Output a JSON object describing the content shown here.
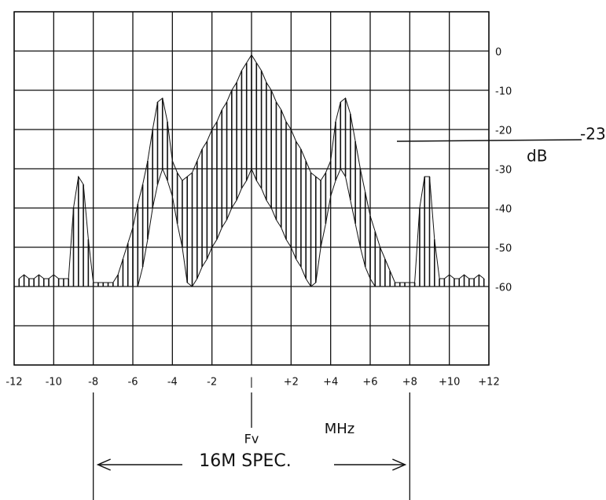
{
  "chart_data": {
    "type": "comb",
    "x_label": "MHz",
    "y_label": "dB",
    "center_label": "Fv",
    "span": {
      "label": "16M SPEC.",
      "from": -8,
      "to": 8
    },
    "reference_line": {
      "value": -23
    },
    "xlim": [
      -12,
      12
    ],
    "ylim": [
      -80,
      10
    ],
    "xticks": [
      -12,
      -10,
      -8,
      -6,
      -4,
      -2,
      {
        "value": 0,
        "label": "|"
      },
      {
        "value": 2,
        "label": "+2"
      },
      {
        "value": 4,
        "label": "+4"
      },
      {
        "value": 6,
        "label": "+6"
      },
      {
        "value": 8,
        "label": "+8"
      },
      {
        "value": 10,
        "label": "+10"
      },
      {
        "value": 12,
        "label": "+12"
      }
    ],
    "yticks": [
      0,
      -10,
      -20,
      -30,
      -40,
      -50,
      -60
    ],
    "grid": true,
    "color": "#111111",
    "x": [
      -11.75,
      -11.5,
      -11.25,
      -11,
      -10.75,
      -10.5,
      -10.25,
      -10,
      -9.75,
      -9.5,
      -9.25,
      -9,
      -8.75,
      -8.5,
      -8.25,
      -8,
      -7.75,
      -7.5,
      -7.25,
      -7,
      -6.75,
      -6.5,
      -6.25,
      -6,
      -5.75,
      -5.5,
      -5.25,
      -5,
      -4.75,
      -4.5,
      -4.25,
      -4,
      -3.75,
      -3.5,
      -3.25,
      -3,
      -2.75,
      -2.5,
      -2.25,
      -2,
      -1.75,
      -1.5,
      -1.25,
      -1,
      -0.75,
      -0.5,
      -0.25,
      0,
      0.25,
      0.5,
      0.75,
      1,
      1.25,
      1.5,
      1.75,
      2,
      2.25,
      2.5,
      2.75,
      3,
      3.25,
      3.5,
      3.75,
      4,
      4.25,
      4.5,
      4.75,
      5,
      5.25,
      5.5,
      5.75,
      6,
      6.25,
      6.5,
      6.75,
      7,
      7.25,
      7.5,
      7.75,
      8,
      8.25,
      8.5,
      8.75,
      9,
      9.25,
      9.5,
      9.75,
      10,
      10.25,
      10.5,
      10.75,
      11,
      11.25,
      11.5,
      11.75
    ],
    "series": [
      {
        "values": [
          -58,
          -57,
          -58,
          -58,
          -57,
          -58,
          -58,
          -57,
          -58,
          -58,
          -58,
          -40,
          -32,
          -34,
          -48,
          -59,
          -59,
          -59,
          -59,
          -59,
          -57,
          -53,
          -49,
          -45,
          -39,
          -34,
          -28,
          -20,
          -13,
          -12,
          -18,
          -28,
          -31,
          -33,
          -32,
          -31,
          -28,
          -25,
          -23,
          -20,
          -18,
          -15,
          -13,
          -10,
          -8,
          -5,
          -3,
          -1,
          -3,
          -5,
          -8,
          -10,
          -13,
          -15,
          -18,
          -20,
          -23,
          -25,
          -28,
          -31,
          -32,
          -33,
          -31,
          -28,
          -18,
          -13,
          -12,
          -16,
          -23,
          -30,
          -36,
          -42,
          -46,
          -50,
          -53,
          -56,
          -59,
          -59,
          -59,
          -59,
          -59,
          -40,
          -32,
          -32,
          -48,
          -58,
          -58,
          -57,
          -58,
          -58,
          -57,
          -58,
          -58,
          -57,
          -58
        ]
      },
      {
        "values": [
          -60,
          -60,
          -60,
          -60,
          -60,
          -60,
          -60,
          -60,
          -60,
          -60,
          -60,
          -60,
          -60,
          -60,
          -60,
          -60,
          -60,
          -60,
          -60,
          -60,
          -60,
          -60,
          -60,
          -60,
          -60,
          -55,
          -48,
          -40,
          -34,
          -30,
          -33,
          -37,
          -44,
          -50,
          -59,
          -60,
          -58,
          -55,
          -53,
          -50,
          -48,
          -45,
          -43,
          -40,
          -38,
          -35,
          -33,
          -30,
          -33,
          -35,
          -38,
          -40,
          -43,
          -45,
          -48,
          -50,
          -53,
          -55,
          -58,
          -60,
          -59,
          -50,
          -44,
          -37,
          -33,
          -30,
          -32,
          -38,
          -44,
          -50,
          -55,
          -58,
          -60,
          -60,
          -60,
          -60,
          -60,
          -60,
          -60,
          -60,
          -60,
          -60,
          -60,
          -60,
          -60,
          -60,
          -60,
          -60,
          -60,
          -60,
          -60,
          -60,
          -60,
          -60,
          -60
        ]
      }
    ]
  }
}
